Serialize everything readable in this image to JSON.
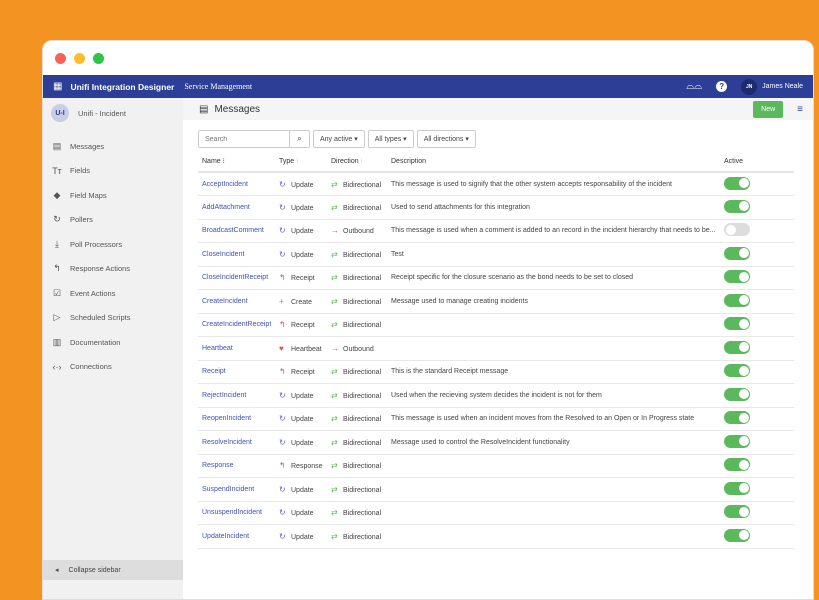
{
  "colors": {
    "accent": "#2c3e96",
    "background": "#f39321",
    "toggle_on": "#5cb85c",
    "link": "#3f51b5"
  },
  "nav": {
    "app_title": "Unifi Integration Designer",
    "subtitle": "Service Management",
    "user_initials": "JN",
    "user_name": "James Neale"
  },
  "sidebar": {
    "project_initials": "U-I",
    "project_name": "Unifi - Incident",
    "items": [
      {
        "label": "Messages",
        "icon": "file-icon"
      },
      {
        "label": "Fields",
        "icon": "text-icon"
      },
      {
        "label": "Field Maps",
        "icon": "map-icon"
      },
      {
        "label": "Pollers",
        "icon": "refresh-icon"
      },
      {
        "label": "Poll Processors",
        "icon": "download-icon"
      },
      {
        "label": "Response Actions",
        "icon": "reply-icon"
      },
      {
        "label": "Event Actions",
        "icon": "check-square-icon"
      },
      {
        "label": "Scheduled Scripts",
        "icon": "play-icon"
      },
      {
        "label": "Documentation",
        "icon": "book-icon"
      },
      {
        "label": "Connections",
        "icon": "code-icon"
      }
    ],
    "collapse_label": "Collapse sidebar"
  },
  "main": {
    "title": "Messages",
    "new_label": "New",
    "search_placeholder": "Search",
    "filters": [
      "Any active",
      "All types",
      "All directions"
    ],
    "columns": {
      "name": "Name",
      "type": "Type",
      "direction": "Direction",
      "description": "Description",
      "active": "Active"
    },
    "rows": [
      {
        "name": "AcceptIncident",
        "type": "Update",
        "direction": "Bidirectional",
        "description": "This message is used to signify that the other system accepts responsability of the incident",
        "active": true
      },
      {
        "name": "AddAttachment",
        "type": "Update",
        "direction": "Bidirectional",
        "description": "Used to send attachments for this integration",
        "active": true
      },
      {
        "name": "BroadcastComment",
        "type": "Update",
        "direction": "Outbound",
        "description": "This message is used when a comment is added to an record in the incident hierarchy that needs to be...",
        "active": false
      },
      {
        "name": "CloseIncident",
        "type": "Update",
        "direction": "Bidirectional",
        "description": "Test",
        "active": true
      },
      {
        "name": "CloseIncidentReceipt",
        "type": "Receipt",
        "direction": "Bidirectional",
        "description": "Receipt specific for the closure scenario as the bond needs to be set to closed",
        "active": true
      },
      {
        "name": "CreateIncident",
        "type": "Create",
        "direction": "Bidirectional",
        "description": "Message used to manage creating incidents",
        "active": true
      },
      {
        "name": "CreateIncidentReceipt",
        "type": "Receipt",
        "direction": "Bidirectional",
        "description": "",
        "active": true
      },
      {
        "name": "Heartbeat",
        "type": "Heartbeat",
        "direction": "Outbound",
        "description": "",
        "active": true
      },
      {
        "name": "Receipt",
        "type": "Receipt",
        "direction": "Bidirectional",
        "description": "This is the standard Receipt message",
        "active": true
      },
      {
        "name": "RejectIncident",
        "type": "Update",
        "direction": "Bidirectional",
        "description": "Used when the recieving system decides the incident is not for them",
        "active": true
      },
      {
        "name": "ReopenIncident",
        "type": "Update",
        "direction": "Bidirectional",
        "description": "This message is used when an incident moves from the Resolved to an Open or In Progress state",
        "active": true
      },
      {
        "name": "ResolveIncident",
        "type": "Update",
        "direction": "Bidirectional",
        "description": "Message used to control the ResolveIncident functionality",
        "active": true
      },
      {
        "name": "Response",
        "type": "Response",
        "direction": "Bidirectional",
        "description": "",
        "active": true
      },
      {
        "name": "SuspendIncident",
        "type": "Update",
        "direction": "Bidirectional",
        "description": "",
        "active": true
      },
      {
        "name": "UnsuspendIncident",
        "type": "Update",
        "direction": "Bidirectional",
        "description": "",
        "active": true
      },
      {
        "name": "UpdateIncident",
        "type": "Update",
        "direction": "Bidirectional",
        "description": "",
        "active": true
      }
    ]
  }
}
